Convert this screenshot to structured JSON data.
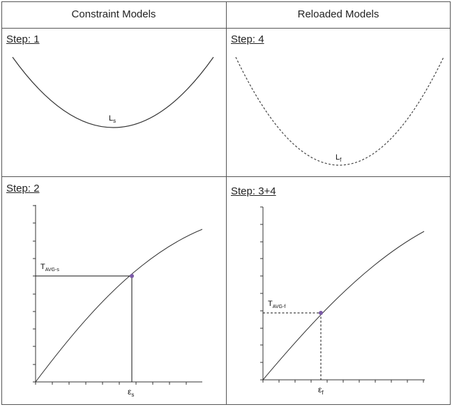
{
  "headers": {
    "left": "Constraint Models",
    "right": "Reloaded Models"
  },
  "steps": {
    "top_left": "Step: 1",
    "top_right": "Step: 4",
    "bottom_left": "Step: 2",
    "bottom_right": "Step: 3+4"
  },
  "labels": {
    "ls_main": "L",
    "ls_sub": "s",
    "lf_main": "L",
    "lf_sub": "f",
    "tavg_s_main": "T",
    "tavg_s_sub": "AVG-s",
    "tavg_f_main": "T",
    "tavg_f_sub": "AVG-f",
    "eps_s_main": "ε",
    "eps_s_sub": "s",
    "eps_f_main": "ε",
    "eps_f_sub": "f"
  },
  "colors": {
    "border": "#555555",
    "curve": "#333333",
    "point": "#7b5aa6"
  }
}
